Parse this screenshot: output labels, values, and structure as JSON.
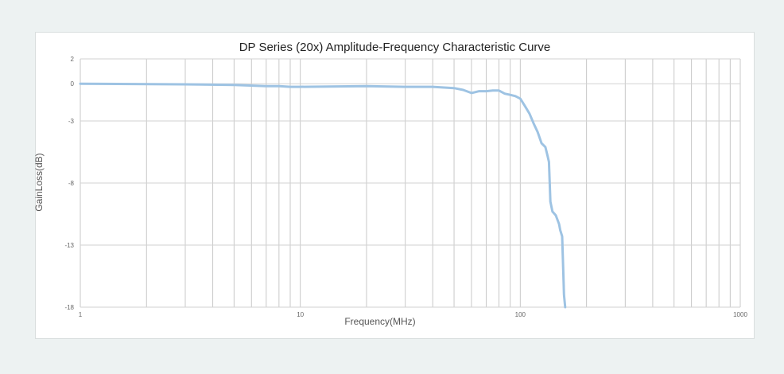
{
  "chart_data": {
    "type": "line",
    "title": "DP Series (20x) Amplitude-Frequency Characteristic Curve",
    "xlabel": "Frequency(MHz)",
    "ylabel": "GainLoss(dB)",
    "x_scale": "log",
    "xlim": [
      1,
      1000
    ],
    "y_ticks": [
      2,
      0,
      -3,
      -8,
      -13,
      -18
    ],
    "x_ticks": [
      1,
      10,
      100,
      1000
    ],
    "x_tick_labels": [
      "1",
      "10",
      "100",
      "1000"
    ],
    "y_tick_labels": [
      "2",
      "0",
      "-3",
      "-8",
      "-13",
      "-18"
    ],
    "grid": true,
    "series_color": "#9ec3e3",
    "series": [
      {
        "x": [
          1,
          3,
          5,
          7,
          8,
          9,
          10,
          20,
          30,
          40,
          50,
          55,
          60,
          65,
          70,
          75,
          80,
          85,
          90,
          95,
          100,
          105,
          110,
          115,
          120,
          125,
          130,
          133,
          135,
          137,
          140,
          145,
          150,
          152,
          155,
          157,
          158,
          160
        ],
        "y": [
          0,
          -0.05,
          -0.1,
          -0.2,
          -0.2,
          -0.25,
          -0.25,
          -0.2,
          -0.25,
          -0.25,
          -0.35,
          -0.5,
          -0.75,
          -0.6,
          -0.6,
          -0.55,
          -0.55,
          -0.8,
          -0.9,
          -1.0,
          -1.2,
          -1.8,
          -2.4,
          -3.2,
          -3.9,
          -4.8,
          -5.1,
          -5.8,
          -6.3,
          -9.5,
          -10.3,
          -10.6,
          -11.3,
          -11.8,
          -12.3,
          -15.3,
          -17.0,
          -18.0
        ]
      }
    ]
  }
}
